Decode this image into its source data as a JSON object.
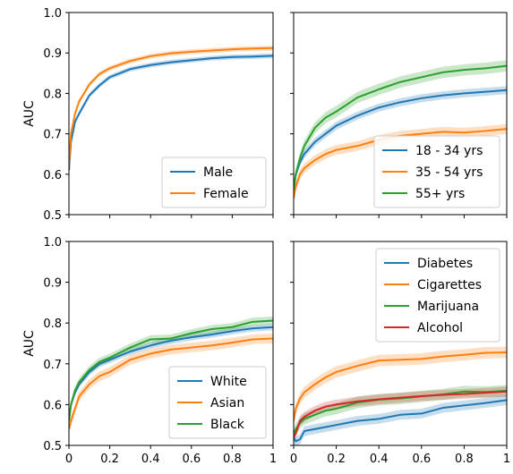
{
  "chart_data": [
    {
      "type": "line",
      "panel": "top-left",
      "ylabel": "AUC",
      "xlabel": "",
      "xlim": [
        0,
        1
      ],
      "ylim": [
        0.5,
        1.0
      ],
      "yticks": [
        "0.5",
        "0.6",
        "0.7",
        "0.8",
        "0.9",
        "1.0"
      ],
      "xticks": [],
      "legend_position": "bottom-right",
      "series": [
        {
          "name": "Male",
          "color": "#1f77b4",
          "x": [
            0,
            0.01,
            0.03,
            0.05,
            0.1,
            0.15,
            0.2,
            0.3,
            0.4,
            0.5,
            0.6,
            0.7,
            0.8,
            0.9,
            1.0
          ],
          "y": [
            0.61,
            0.68,
            0.73,
            0.75,
            0.795,
            0.82,
            0.84,
            0.86,
            0.87,
            0.877,
            0.882,
            0.887,
            0.89,
            0.891,
            0.893
          ],
          "band": 0.006
        },
        {
          "name": "Female",
          "color": "#ff7f0e",
          "x": [
            0,
            0.01,
            0.03,
            0.05,
            0.1,
            0.15,
            0.2,
            0.3,
            0.4,
            0.5,
            0.6,
            0.7,
            0.8,
            0.9,
            1.0
          ],
          "y": [
            0.62,
            0.7,
            0.75,
            0.78,
            0.822,
            0.848,
            0.862,
            0.88,
            0.892,
            0.899,
            0.903,
            0.906,
            0.909,
            0.911,
            0.912
          ],
          "band": 0.006
        }
      ]
    },
    {
      "type": "line",
      "panel": "top-right",
      "ylabel": "",
      "xlabel": "",
      "xlim": [
        0,
        1
      ],
      "ylim": [
        0.5,
        1.0
      ],
      "yticks": [],
      "xticks": [],
      "legend_position": "bottom-right",
      "series": [
        {
          "name": "18 - 34 yrs",
          "color": "#1f77b4",
          "x": [
            0,
            0.01,
            0.03,
            0.05,
            0.1,
            0.15,
            0.2,
            0.3,
            0.4,
            0.5,
            0.6,
            0.7,
            0.8,
            0.9,
            1.0
          ],
          "y": [
            0.56,
            0.6,
            0.63,
            0.65,
            0.68,
            0.7,
            0.72,
            0.745,
            0.765,
            0.778,
            0.788,
            0.795,
            0.8,
            0.804,
            0.808
          ],
          "band": 0.01
        },
        {
          "name": "35 - 54 yrs",
          "color": "#ff7f0e",
          "x": [
            0,
            0.01,
            0.03,
            0.05,
            0.1,
            0.15,
            0.2,
            0.3,
            0.4,
            0.5,
            0.6,
            0.7,
            0.8,
            0.9,
            1.0
          ],
          "y": [
            0.54,
            0.57,
            0.6,
            0.615,
            0.635,
            0.65,
            0.66,
            0.67,
            0.685,
            0.695,
            0.7,
            0.705,
            0.703,
            0.707,
            0.712
          ],
          "band": 0.012
        },
        {
          "name": "55+ yrs",
          "color": "#2ca02c",
          "x": [
            0,
            0.01,
            0.03,
            0.05,
            0.1,
            0.15,
            0.2,
            0.3,
            0.4,
            0.5,
            0.6,
            0.7,
            0.8,
            0.9,
            1.0
          ],
          "y": [
            0.56,
            0.6,
            0.64,
            0.67,
            0.715,
            0.74,
            0.755,
            0.79,
            0.81,
            0.828,
            0.84,
            0.852,
            0.858,
            0.862,
            0.868
          ],
          "band": 0.014
        }
      ]
    },
    {
      "type": "line",
      "panel": "bottom-left",
      "ylabel": "AUC",
      "xlabel": "",
      "xlim": [
        0,
        1
      ],
      "ylim": [
        0.5,
        1.0
      ],
      "yticks": [
        "0.5",
        "0.6",
        "0.7",
        "0.8",
        "0.9",
        "1.0"
      ],
      "xticks": [
        "0",
        "0.2",
        "0.4",
        "0.6",
        "0.8",
        "1"
      ],
      "legend_position": "bottom-right",
      "series": [
        {
          "name": "White",
          "color": "#1f77b4",
          "x": [
            0,
            0.01,
            0.03,
            0.05,
            0.1,
            0.15,
            0.2,
            0.3,
            0.4,
            0.5,
            0.6,
            0.7,
            0.8,
            0.9,
            1.0
          ],
          "y": [
            0.56,
            0.6,
            0.63,
            0.65,
            0.68,
            0.7,
            0.71,
            0.73,
            0.745,
            0.757,
            0.765,
            0.772,
            0.78,
            0.787,
            0.79
          ],
          "band": 0.008
        },
        {
          "name": "Asian",
          "color": "#ff7f0e",
          "x": [
            0,
            0.01,
            0.03,
            0.05,
            0.1,
            0.15,
            0.2,
            0.3,
            0.4,
            0.5,
            0.6,
            0.7,
            0.8,
            0.9,
            1.0
          ],
          "y": [
            0.54,
            0.56,
            0.59,
            0.62,
            0.65,
            0.67,
            0.68,
            0.71,
            0.725,
            0.735,
            0.74,
            0.745,
            0.752,
            0.76,
            0.762
          ],
          "band": 0.012
        },
        {
          "name": "Black",
          "color": "#2ca02c",
          "x": [
            0,
            0.01,
            0.03,
            0.05,
            0.1,
            0.15,
            0.2,
            0.3,
            0.4,
            0.5,
            0.6,
            0.7,
            0.8,
            0.9,
            1.0
          ],
          "y": [
            0.56,
            0.6,
            0.635,
            0.655,
            0.685,
            0.705,
            0.715,
            0.74,
            0.76,
            0.762,
            0.775,
            0.785,
            0.79,
            0.803,
            0.806
          ],
          "band": 0.01
        }
      ]
    },
    {
      "type": "line",
      "panel": "bottom-right",
      "ylabel": "",
      "xlabel": "",
      "xlim": [
        0,
        1
      ],
      "ylim": [
        0.5,
        1.0
      ],
      "yticks": [],
      "xticks": [
        "0",
        "0.2",
        "0.4",
        "0.6",
        "0.8",
        "1"
      ],
      "legend_position": "top-right",
      "series": [
        {
          "name": "Diabetes",
          "color": "#1f77b4",
          "x": [
            0,
            0.01,
            0.03,
            0.05,
            0.1,
            0.15,
            0.2,
            0.3,
            0.4,
            0.5,
            0.6,
            0.7,
            0.8,
            0.9,
            1.0
          ],
          "y": [
            0.52,
            0.51,
            0.515,
            0.535,
            0.54,
            0.545,
            0.55,
            0.56,
            0.565,
            0.575,
            0.578,
            0.592,
            0.598,
            0.604,
            0.611
          ],
          "band": 0.012
        },
        {
          "name": "Cigarettes",
          "color": "#ff7f0e",
          "x": [
            0,
            0.01,
            0.03,
            0.05,
            0.1,
            0.15,
            0.2,
            0.3,
            0.4,
            0.5,
            0.6,
            0.7,
            0.8,
            0.9,
            1.0
          ],
          "y": [
            0.56,
            0.59,
            0.615,
            0.63,
            0.65,
            0.667,
            0.68,
            0.695,
            0.708,
            0.71,
            0.712,
            0.718,
            0.722,
            0.727,
            0.728
          ],
          "band": 0.014
        },
        {
          "name": "Marijuana",
          "color": "#2ca02c",
          "x": [
            0,
            0.01,
            0.03,
            0.05,
            0.1,
            0.15,
            0.2,
            0.3,
            0.4,
            0.5,
            0.6,
            0.7,
            0.8,
            0.9,
            1.0
          ],
          "y": [
            0.53,
            0.54,
            0.555,
            0.565,
            0.575,
            0.585,
            0.59,
            0.605,
            0.612,
            0.615,
            0.62,
            0.625,
            0.632,
            0.631,
            0.634
          ],
          "band": 0.014
        },
        {
          "name": "Alcohol",
          "color": "#d62728",
          "x": [
            0,
            0.01,
            0.03,
            0.05,
            0.1,
            0.15,
            0.2,
            0.3,
            0.4,
            0.5,
            0.6,
            0.7,
            0.8,
            0.9,
            1.0
          ],
          "y": [
            0.52,
            0.53,
            0.56,
            0.57,
            0.585,
            0.595,
            0.6,
            0.608,
            0.613,
            0.617,
            0.621,
            0.624,
            0.626,
            0.629,
            0.632
          ],
          "band": 0.012
        }
      ]
    }
  ]
}
